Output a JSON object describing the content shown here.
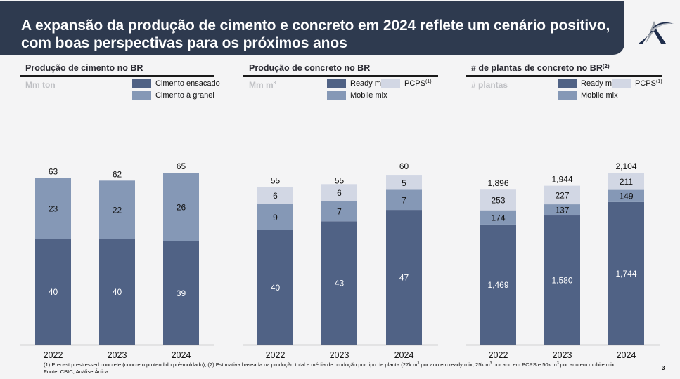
{
  "header": {
    "title": "A expansão da produção de cimento e concreto em 2024 reflete um cenário positivo, com boas perspectivas para os próximos anos",
    "logo": "artica-logo-icon"
  },
  "colors": {
    "header_bg": "#2e3a4f",
    "dark": "#506285",
    "mid": "#8598b6",
    "light": "#d2d7e4"
  },
  "panels": [
    {
      "title": "Produção de cimento no BR",
      "title_sup": "",
      "unit": "Mm ton",
      "unit_sup": "",
      "legend": [
        {
          "label": "Cimento ensacado",
          "sup": "",
          "color": "#506285"
        },
        {
          "label": "Cimento à granel",
          "sup": "",
          "color": "#8598b6"
        }
      ]
    },
    {
      "title": "Produção de concreto no BR",
      "title_sup": "",
      "unit": "Mm m",
      "unit_sup": "3",
      "legend": [
        {
          "label": "Ready mix",
          "sup": "",
          "color": "#506285"
        },
        {
          "label": "Mobile mix",
          "sup": "",
          "color": "#8598b6"
        },
        {
          "label": "PCPS",
          "sup": "(1)",
          "color": "#d2d7e4"
        }
      ]
    },
    {
      "title": "# de plantas de concreto no BR",
      "title_sup": "(2)",
      "unit": "# plantas",
      "unit_sup": "",
      "legend": [
        {
          "label": "Ready mix",
          "sup": "",
          "color": "#506285"
        },
        {
          "label": "Mobile mix",
          "sup": "",
          "color": "#8598b6"
        },
        {
          "label": "PCPS",
          "sup": "(1)",
          "color": "#d2d7e4"
        }
      ]
    }
  ],
  "chart_data": [
    {
      "type": "bar",
      "stacked": true,
      "title": "Produção de cimento no BR",
      "ylabel": "Mm ton",
      "categories": [
        "2022",
        "2023",
        "2024"
      ],
      "series": [
        {
          "name": "Cimento ensacado",
          "values": [
            40,
            40,
            39
          ],
          "color": "#506285",
          "label_color": "#ffffff",
          "labels": [
            "40",
            "40",
            "39"
          ]
        },
        {
          "name": "Cimento à granel",
          "values": [
            23,
            22,
            26
          ],
          "color": "#8598b6",
          "label_color": "#111111",
          "labels": [
            "23",
            "22",
            "26"
          ]
        }
      ],
      "totals": [
        63,
        62,
        65
      ],
      "total_labels": [
        "63",
        "62",
        "65"
      ],
      "ylim": [
        0,
        65
      ],
      "grid": false,
      "legend": "top-right"
    },
    {
      "type": "bar",
      "stacked": true,
      "title": "Produção de concreto no BR",
      "ylabel": "Mm m³",
      "categories": [
        "2022",
        "2023",
        "2024"
      ],
      "series": [
        {
          "name": "Ready mix",
          "values": [
            40,
            43,
            47
          ],
          "color": "#506285",
          "label_color": "#ffffff",
          "labels": [
            "40",
            "43",
            "47"
          ]
        },
        {
          "name": "Mobile mix",
          "values": [
            9,
            7,
            7
          ],
          "color": "#8598b6",
          "label_color": "#111111",
          "labels": [
            "9",
            "7",
            "7"
          ]
        },
        {
          "name": "PCPS(1)",
          "values": [
            6,
            6,
            5
          ],
          "color": "#d2d7e4",
          "label_color": "#111111",
          "labels": [
            "6",
            "6",
            "5"
          ]
        }
      ],
      "totals": [
        55,
        55,
        60
      ],
      "total_labels": [
        "55",
        "55",
        "60"
      ],
      "ylim": [
        0,
        60
      ],
      "grid": false,
      "legend": "top-right"
    },
    {
      "type": "bar",
      "stacked": true,
      "title": "# de plantas de concreto no BR(2)",
      "ylabel": "# plantas",
      "categories": [
        "2022",
        "2023",
        "2024"
      ],
      "series": [
        {
          "name": "Ready mix",
          "values": [
            1469,
            1580,
            1744
          ],
          "color": "#506285",
          "label_color": "#ffffff",
          "labels": [
            "1,469",
            "1,580",
            "1,744"
          ]
        },
        {
          "name": "Mobile mix",
          "values": [
            174,
            137,
            149
          ],
          "color": "#8598b6",
          "label_color": "#111111",
          "labels": [
            "174",
            "137",
            "149"
          ]
        },
        {
          "name": "PCPS(1)",
          "values": [
            253,
            227,
            211
          ],
          "color": "#d2d7e4",
          "label_color": "#111111",
          "labels": [
            "253",
            "227",
            "211"
          ]
        }
      ],
      "totals": [
        1896,
        1944,
        2104
      ],
      "total_labels": [
        "1,896",
        "1,944",
        "2,104"
      ],
      "ylim": [
        0,
        2104
      ],
      "grid": false,
      "legend": "top-right"
    }
  ],
  "footnote": {
    "line1_a": "(1) Precast prestressed concrete (concreto protendido pré-moldado); (2) Estimativa baseada na produção total e média de produção por tipo de planta (27k m",
    "line1_b": " por ano em ready mix, 25k m",
    "line1_c": " por ano em PCPS e 50k m",
    "line1_d": " por ano em mobile mix",
    "sup": "3",
    "line2": "Fonte: CBIC; Análise Ártica"
  },
  "page_number": "3"
}
